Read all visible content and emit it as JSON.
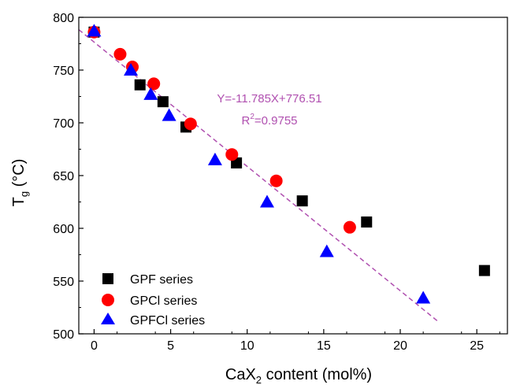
{
  "chart_data": {
    "type": "scatter",
    "xlabel_main": "CaX",
    "xlabel_sub": "2",
    "xlabel_rest": " content (mol%)",
    "ylabel_main": "T",
    "ylabel_sub": "g",
    "ylabel_rest": " (°C)",
    "xlim": [
      -1,
      27
    ],
    "ylim": [
      500,
      800
    ],
    "xticks": [
      0,
      5,
      10,
      15,
      20,
      25
    ],
    "yticks": [
      500,
      550,
      600,
      650,
      700,
      750,
      800
    ],
    "series": [
      {
        "name": "GPF series",
        "marker": "square",
        "color": "#000000",
        "x": [
          0,
          3.0,
          4.5,
          6.0,
          9.3,
          13.6,
          17.8,
          25.5
        ],
        "y": [
          786,
          736,
          720,
          696,
          662,
          626,
          606,
          560
        ]
      },
      {
        "name": "GPCl series",
        "marker": "circle",
        "color": "#ff0000",
        "x": [
          0,
          1.7,
          2.5,
          3.9,
          6.3,
          9.0,
          11.9,
          16.7
        ],
        "y": [
          786,
          765,
          753,
          737,
          699,
          670,
          645,
          601
        ]
      },
      {
        "name": "GPFCl series",
        "marker": "triangle",
        "color": "#0000ff",
        "x": [
          0,
          2.4,
          3.7,
          4.9,
          7.9,
          11.3,
          15.2,
          21.5
        ],
        "y": [
          787,
          750,
          727,
          707,
          665,
          625,
          578,
          534
        ]
      }
    ],
    "fit": {
      "color": "#b050b0",
      "slope": -11.785,
      "intercept": 776.51,
      "x_range": [
        -1.0,
        22.5
      ],
      "equation": "Y=-11.785X+776.51",
      "r2_prefix": "R",
      "r2_sup": "2",
      "r2_value": "=0.9755"
    },
    "legend_position": "bottom-left",
    "grid": false
  }
}
